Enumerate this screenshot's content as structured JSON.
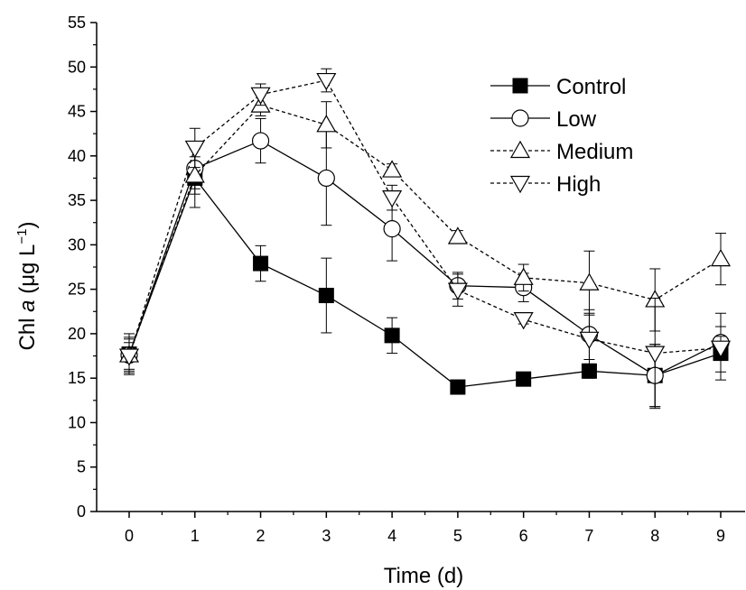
{
  "chart_data": {
    "type": "line",
    "xlabel": "Time (d)",
    "ylabel_parts": {
      "pre": "Chl ",
      "italic": "a",
      "unit": " (μg L",
      "sup": "−1",
      "close": ")"
    },
    "x": [
      0,
      1,
      2,
      3,
      4,
      5,
      6,
      7,
      8,
      9
    ],
    "xlim": [
      -0.45,
      9.45
    ],
    "ylim": [
      0,
      55
    ],
    "xticks": [
      0,
      1,
      2,
      3,
      4,
      5,
      6,
      7,
      8,
      9
    ],
    "yticks": [
      0,
      5,
      10,
      15,
      20,
      25,
      30,
      35,
      40,
      45,
      50,
      55
    ],
    "grid": false,
    "legend_position": "top-right",
    "series": [
      {
        "name": "Control",
        "marker": "filled-square",
        "line": "solid",
        "values": [
          17.7,
          37.5,
          27.9,
          24.3,
          19.8,
          14.0,
          14.9,
          15.8,
          15.3,
          17.8
        ],
        "errors": [
          2.3,
          3.3,
          2.0,
          4.2,
          2.0,
          0.2,
          0.5,
          0.8,
          3.5,
          3.0
        ]
      },
      {
        "name": "Low",
        "marker": "open-circle",
        "line": "solid",
        "values": [
          17.6,
          38.6,
          41.7,
          37.5,
          31.8,
          25.4,
          25.2,
          19.9,
          15.3,
          19.0
        ],
        "errors": [
          2.0,
          2.3,
          2.5,
          5.3,
          3.6,
          1.5,
          1.6,
          2.8,
          3.5,
          3.3
        ]
      },
      {
        "name": "Medium",
        "marker": "open-triangle-up",
        "line": "dashed",
        "values": [
          17.6,
          37.8,
          45.7,
          43.5,
          38.4,
          30.9,
          26.3,
          25.7,
          23.8,
          28.4
        ],
        "errors": [
          1.8,
          2.1,
          1.2,
          2.6,
          0.7,
          0.7,
          1.5,
          3.6,
          3.5,
          2.9
        ]
      },
      {
        "name": "High",
        "marker": "open-triangle-down",
        "line": "dashed",
        "values": [
          17.5,
          40.9,
          46.9,
          48.5,
          35.3,
          24.9,
          21.6,
          19.4,
          17.8,
          18.4
        ],
        "errors": [
          1.5,
          2.2,
          1.2,
          1.3,
          1.4,
          1.8,
          0.5,
          2.9,
          6.2,
          1.3
        ]
      }
    ]
  }
}
